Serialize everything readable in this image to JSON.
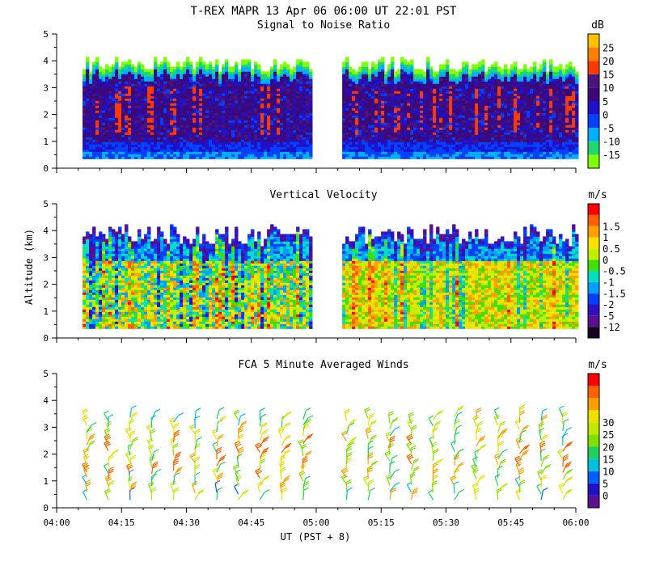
{
  "header": {
    "title": "T-REX  MAPR 13 Apr 06  06:00 UT  22:01  PST"
  },
  "x_axis": {
    "ticks": [
      "04:00",
      "04:15",
      "04:30",
      "04:45",
      "05:00",
      "05:15",
      "05:30",
      "05:45",
      "06:00"
    ],
    "label": "UT  (PST + 8)"
  },
  "shared_ylabel": "Altitude (km)",
  "colors": {
    "snr": [
      "#80ff00",
      "#20d870",
      "#00b0ff",
      "#0040ff",
      "#2010c8",
      "#3c0a78",
      "#4c1480",
      "#ff3a00",
      "#ff8000",
      "#ffc000"
    ],
    "vv": [
      "#1a0020",
      "#5a1090",
      "#3010c0",
      "#0040ff",
      "#00a0ff",
      "#00e0c0",
      "#40e000",
      "#c0f000",
      "#ffe000",
      "#ffa000",
      "#ff6000",
      "#ff0000"
    ],
    "winds": [
      "#5a1090",
      "#2010c8",
      "#0060ff",
      "#00c0e0",
      "#20d060",
      "#80e000",
      "#c0e800",
      "#f0e000",
      "#ffa000",
      "#ff6000",
      "#ff0000"
    ]
  },
  "chart_data": [
    {
      "type": "heatmap",
      "title": "Signal to Noise Ratio",
      "ylabel": "",
      "colorbar_unit": "dB",
      "colorbar_ticks": [
        "-15",
        "-10",
        "-5",
        "0",
        "5",
        "10",
        "15",
        "20",
        "25"
      ],
      "x_range": [
        "04:00",
        "06:00"
      ],
      "ylim": [
        0,
        5
      ],
      "y_ticks": [
        "0",
        "1",
        "2",
        "3",
        "4",
        "5"
      ],
      "data_segments": [
        [
          "04:06",
          "04:59"
        ],
        [
          "05:06",
          "06:00"
        ]
      ],
      "altitude_range_km": [
        0.3,
        4.3
      ],
      "typical_values_dB": {
        "core_0.6_3.3km": [
          5,
          15
        ],
        "edge_3.5_4.2km": [
          -15,
          -5
        ]
      }
    },
    {
      "type": "heatmap",
      "title": "Vertical Velocity",
      "ylabel": "Altitude (km)",
      "colorbar_unit": "m/s",
      "colorbar_ticks": [
        "-12",
        "-5",
        "-2",
        "-1.5",
        "-1",
        "-0.5",
        "0",
        "0.5",
        "1",
        "1.5"
      ],
      "x_range": [
        "04:00",
        "06:00"
      ],
      "ylim": [
        0,
        5
      ],
      "y_ticks": [
        "0",
        "1",
        "2",
        "3",
        "4",
        "5"
      ],
      "data_segments": [
        [
          "04:06",
          "04:59"
        ],
        [
          "05:06",
          "06:00"
        ]
      ],
      "altitude_range_km": [
        0.3,
        4.2
      ]
    },
    {
      "type": "scatter",
      "title": "FCA 5 Minute Averaged Winds",
      "ylabel": "",
      "colorbar_unit": "m/s",
      "colorbar_ticks": [
        "0",
        "5",
        "10",
        "15",
        "20",
        "25",
        "30"
      ],
      "x_range": [
        "04:00",
        "06:00"
      ],
      "ylim": [
        0,
        5
      ],
      "y_ticks": [
        "0",
        "1",
        "2",
        "3",
        "4",
        "5"
      ],
      "barb_times": [
        "04:07",
        "04:12",
        "04:17",
        "04:22",
        "04:27",
        "04:32",
        "04:37",
        "04:42",
        "04:47",
        "04:52",
        "04:57",
        "05:07",
        "05:12",
        "05:17",
        "05:22",
        "05:27",
        "05:32",
        "05:37",
        "05:42",
        "05:47",
        "05:52",
        "05:57"
      ],
      "altitude_range_km": [
        0.2,
        3.4
      ],
      "speed_range_ms": [
        0,
        30
      ]
    }
  ]
}
